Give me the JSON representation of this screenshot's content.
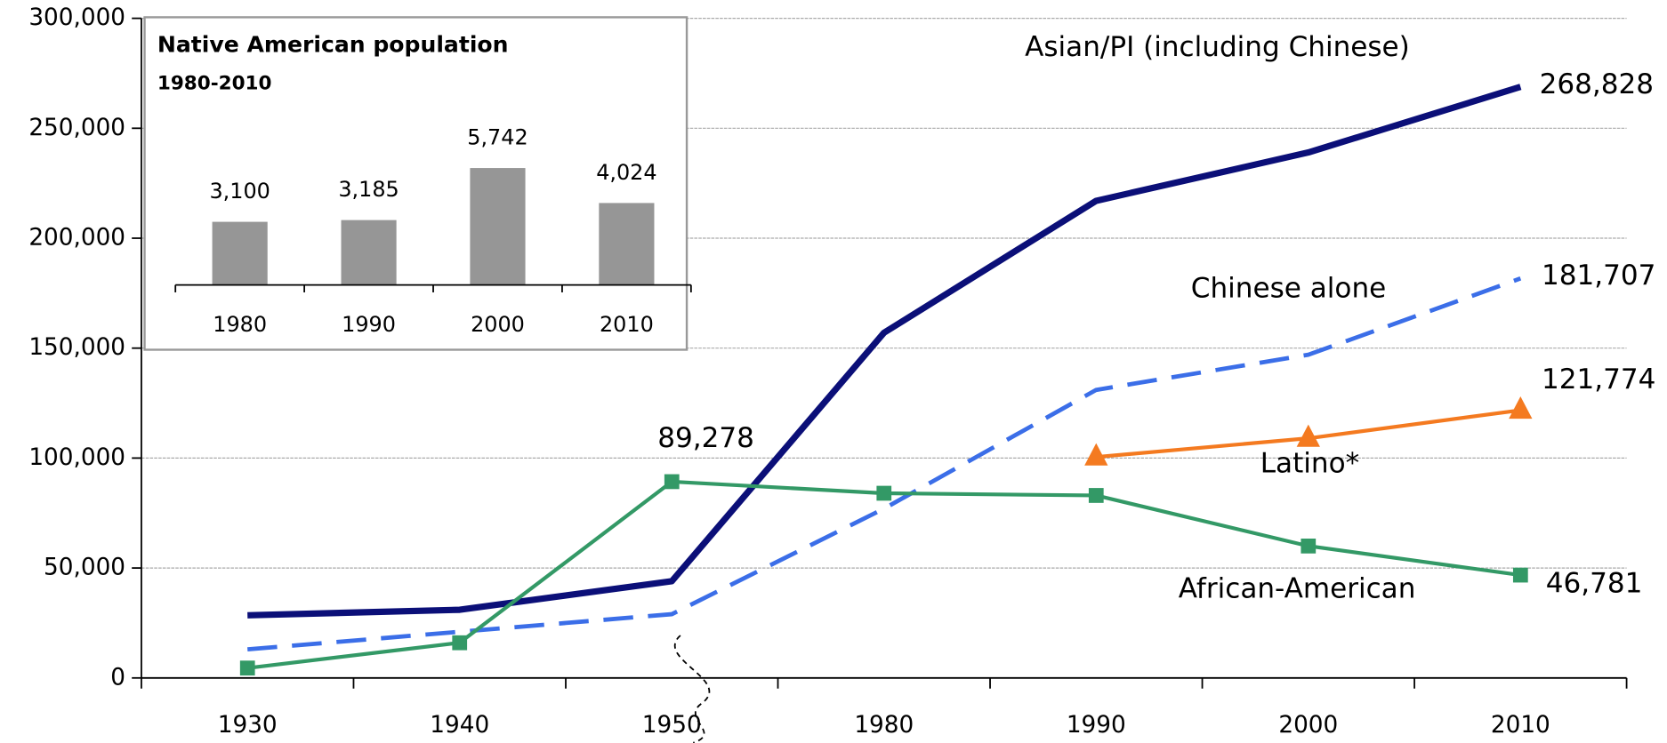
{
  "chart_data": [
    {
      "type": "line",
      "categories": [
        "1930",
        "1940",
        "1950",
        "1980",
        "1990",
        "2000",
        "2010"
      ],
      "ylim": [
        0,
        300000
      ],
      "yticks": [
        {
          "value": 0,
          "label": "0"
        },
        {
          "value": 50000,
          "label": "50,000"
        },
        {
          "value": 100000,
          "label": "100,000"
        },
        {
          "value": 150000,
          "label": "150,000"
        },
        {
          "value": 200000,
          "label": "200,000"
        },
        {
          "value": 250000,
          "label": "250,000"
        },
        {
          "value": 300000,
          "label": "300,000"
        }
      ],
      "grid": true,
      "series": [
        {
          "name": "Asian/PI (including Chinese)",
          "color": "#0b0f78",
          "values": [
            28500,
            31000,
            44000,
            157000,
            217000,
            239000,
            268828
          ],
          "value_labels": [
            null,
            null,
            null,
            null,
            null,
            null,
            "268,828"
          ]
        },
        {
          "name": "Chinese alone",
          "color": "#3b6ee8",
          "dashed": true,
          "values": [
            13000,
            21000,
            29000,
            77000,
            131000,
            147000,
            181707
          ],
          "value_labels": [
            null,
            null,
            null,
            null,
            null,
            null,
            "181,707"
          ]
        },
        {
          "name": "Latino*",
          "color": "#f47a20",
          "marker": "triangle",
          "values": [
            null,
            null,
            null,
            null,
            100500,
            109000,
            121774
          ],
          "value_labels": [
            null,
            null,
            null,
            null,
            null,
            null,
            "121,774"
          ]
        },
        {
          "name": "African-American",
          "color": "#339966",
          "marker": "square",
          "values": [
            4500,
            16000,
            89278,
            84000,
            83000,
            60000,
            46781
          ],
          "value_labels": [
            null,
            null,
            "89,278",
            null,
            null,
            null,
            "46,781"
          ]
        }
      ]
    },
    {
      "type": "bar",
      "title": "Native American population",
      "subtitle": "1980-2010",
      "categories": [
        "1980",
        "1990",
        "2000",
        "2010"
      ],
      "values": [
        3100,
        3185,
        5742,
        4024
      ],
      "value_labels": [
        "3,100",
        "3,185",
        "5,742",
        "4,024"
      ],
      "color": "#969696",
      "ylim": [
        0,
        6000
      ]
    }
  ]
}
